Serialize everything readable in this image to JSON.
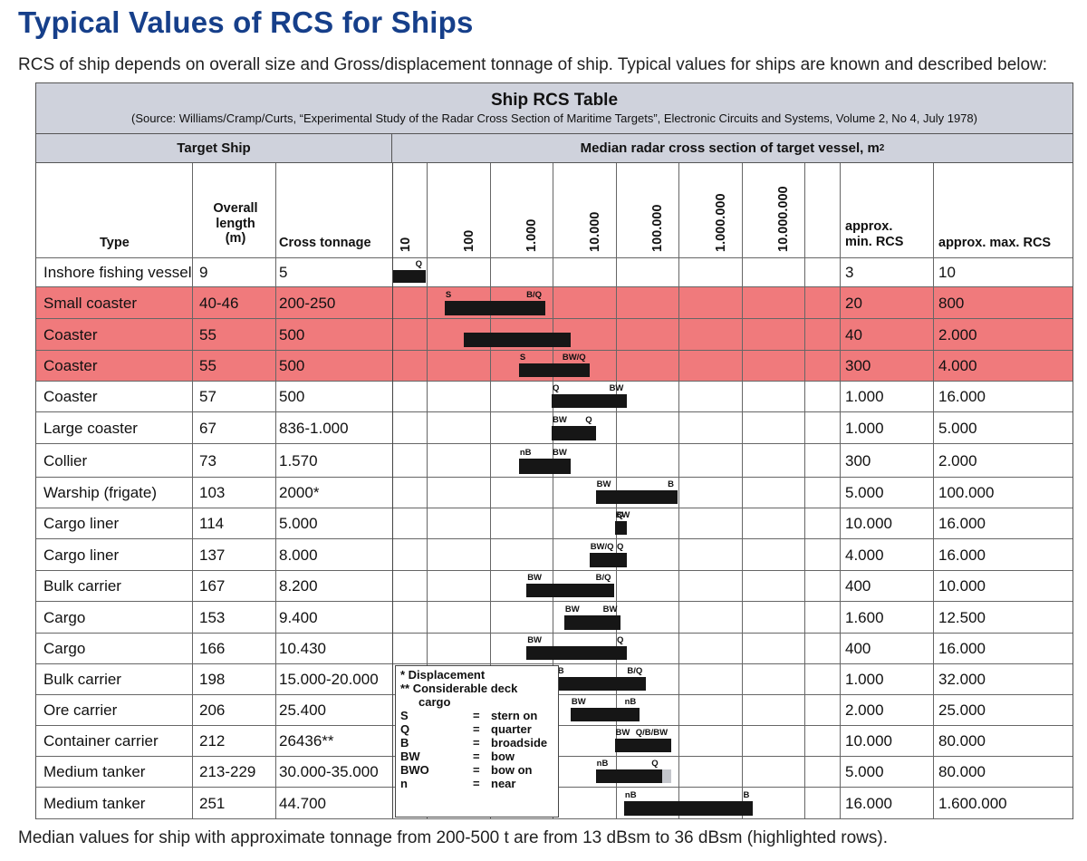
{
  "page": {
    "title": "Typical Values of RCS for Ships",
    "intro": "RCS of ship depends on overall size and Gross/displacement tonnage of ship. Typical values for ships are known and described below:",
    "footer": "Median values for ship with approximate tonnage from 200-500 t are from 13 dBsm to 36 dBsm (highlighted rows)."
  },
  "table": {
    "title": "Ship RCS Table",
    "source": "(Source: Williams/Cramp/Curts, “Experimental Study of the Radar Cross Section of Maritime Targets”, Electronic Circuits and Systems, Volume 2, No 4, July 1978)",
    "group_left": "Target Ship",
    "group_right": "Median radar cross section of target vessel, m",
    "group_right_sup": "2",
    "headers": {
      "type": "Type",
      "length_1": "Overall",
      "length_2": "length",
      "length_3": "(m)",
      "tonnage": "Cross tonnage",
      "min_1": "approx.",
      "min_2": "min.  RCS",
      "max": "approx. max. RCS"
    },
    "scale_labels": [
      "10",
      "100",
      "1.000",
      "10.000",
      "100.000",
      "1.000.000",
      "10.000.000"
    ],
    "highlight_color": "#f07a7c",
    "rows": [
      {
        "type": "Inshore fishing vessel",
        "length": "9",
        "tonnage": "5",
        "min_rcs": "3",
        "max_rcs": "10",
        "highlight": false,
        "bar_log": [
          0.48,
          1.0
        ],
        "labels": [
          {
            "text": "Q",
            "at": "end"
          }
        ]
      },
      {
        "type": "Small coaster",
        "length": "40-46",
        "tonnage": "200-250",
        "min_rcs": "20",
        "max_rcs": "800",
        "highlight": true,
        "bar_log": [
          1.3,
          2.9
        ],
        "labels": [
          {
            "text": "S",
            "at": "start"
          },
          {
            "text": "B/Q",
            "at": "end"
          }
        ]
      },
      {
        "type": "Coaster",
        "length": "55",
        "tonnage": "500",
        "min_rcs": "40",
        "max_rcs": "2.000",
        "highlight": true,
        "bar_log": [
          1.6,
          3.3
        ],
        "labels": []
      },
      {
        "type": "Coaster",
        "length": "55",
        "tonnage": "500",
        "min_rcs": "300",
        "max_rcs": "4.000",
        "highlight": true,
        "bar_log": [
          2.48,
          3.6
        ],
        "labels": [
          {
            "text": "S",
            "at": "start"
          },
          {
            "text": "BW/Q",
            "at": "end"
          }
        ]
      },
      {
        "type": "Coaster",
        "length": "57",
        "tonnage": "500",
        "min_rcs": "1.000",
        "max_rcs": "16.000",
        "highlight": false,
        "bar_log": [
          3.0,
          4.2
        ],
        "labels": [
          {
            "text": "Q",
            "at": "start"
          },
          {
            "text": "BW",
            "at": "end"
          }
        ]
      },
      {
        "type": "Large coaster",
        "length": "67",
        "tonnage": "836-1.000",
        "min_rcs": "1.000",
        "max_rcs": "5.000",
        "highlight": false,
        "bar_log": [
          3.0,
          3.7
        ],
        "labels": [
          {
            "text": "BW",
            "at": "start"
          },
          {
            "text": "Q",
            "at": "end"
          }
        ]
      },
      {
        "type": "Collier",
        "length": "73",
        "tonnage": "1.570",
        "min_rcs": "300",
        "max_rcs": "2.000",
        "highlight": false,
        "bar_log": [
          2.48,
          3.3
        ],
        "labels": [
          {
            "text": "nB",
            "at": "start"
          },
          {
            "text": "BW",
            "at": "end"
          }
        ]
      },
      {
        "type": "Warship (frigate)",
        "length": "103",
        "tonnage": "2000*",
        "min_rcs": "5.000",
        "max_rcs": "100.000",
        "highlight": false,
        "bar_log": [
          3.7,
          5.0
        ],
        "labels": [
          {
            "text": "BW",
            "at": "start"
          },
          {
            "text": "B",
            "at": "end"
          }
        ]
      },
      {
        "type": "Cargo liner",
        "length": "114",
        "tonnage": "5.000",
        "min_rcs": "10.000",
        "max_rcs": "16.000",
        "highlight": false,
        "bar_log": [
          4.0,
          4.2
        ],
        "labels": [
          {
            "text": "BW",
            "at": "start"
          },
          {
            "text": "Q",
            "at": "end"
          }
        ]
      },
      {
        "type": "Cargo liner",
        "length": "137",
        "tonnage": "8.000",
        "min_rcs": "4.000",
        "max_rcs": "16.000",
        "highlight": false,
        "bar_log": [
          3.6,
          4.2
        ],
        "labels": [
          {
            "text": "BW/Q",
            "at": "start"
          },
          {
            "text": "Q",
            "at": "end"
          }
        ]
      },
      {
        "type": "Bulk carrier",
        "length": "167",
        "tonnage": "8.200",
        "min_rcs": "400",
        "max_rcs": "10.000",
        "highlight": false,
        "bar_log": [
          2.6,
          4.0
        ],
        "labels": [
          {
            "text": "BW",
            "at": "start"
          },
          {
            "text": "B/Q",
            "at": "end"
          }
        ]
      },
      {
        "type": "Cargo",
        "length": "153",
        "tonnage": "9.400",
        "min_rcs": "1.600",
        "max_rcs": "12.500",
        "highlight": false,
        "bar_log": [
          3.2,
          4.1
        ],
        "labels": [
          {
            "text": "BW",
            "at": "start"
          },
          {
            "text": "BW",
            "at": "end"
          }
        ]
      },
      {
        "type": "Cargo",
        "length": "166",
        "tonnage": "10.430",
        "min_rcs": "400",
        "max_rcs": "16.000",
        "highlight": false,
        "bar_log": [
          2.6,
          4.2
        ],
        "labels": [
          {
            "text": "BW",
            "at": "start"
          },
          {
            "text": "Q",
            "at": "end"
          }
        ]
      },
      {
        "type": "Bulk carrier",
        "length": "198",
        "tonnage": "15.000-20.000",
        "min_rcs": "1.000",
        "max_rcs": "32.000",
        "highlight": false,
        "bar_log": [
          3.0,
          4.5
        ],
        "labels": [
          {
            "text": "nB",
            "at": "start"
          },
          {
            "text": "B/Q",
            "at": "end"
          }
        ]
      },
      {
        "type": "Ore carrier",
        "length": "206",
        "tonnage": "25.400",
        "min_rcs": "2.000",
        "max_rcs": "25.000",
        "highlight": false,
        "bar_log": [
          3.3,
          4.4
        ],
        "labels": [
          {
            "text": "BW",
            "at": "start"
          },
          {
            "text": "nB",
            "at": "end"
          }
        ]
      },
      {
        "type": "Container carrier",
        "length": "212",
        "tonnage": "26436**",
        "min_rcs": "10.000",
        "max_rcs": "80.000",
        "highlight": false,
        "bar_log": [
          4.0,
          4.9
        ],
        "labels": [
          {
            "text": "BW",
            "at": "start"
          },
          {
            "text": "Q/B/BW",
            "at": "end"
          }
        ]
      },
      {
        "type": "Medium tanker",
        "length": "213-229",
        "tonnage": "30.000-35.000",
        "min_rcs": "5.000",
        "max_rcs": "80.000",
        "highlight": false,
        "bar_log": [
          3.7,
          4.75
        ],
        "gray_log": [
          4.75,
          4.9
        ],
        "labels": [
          {
            "text": "nB",
            "at": "start"
          },
          {
            "text": "Q",
            "at": "end"
          }
        ]
      },
      {
        "type": "Medium tanker",
        "length": "251",
        "tonnage": "44.700",
        "min_rcs": "16.000",
        "max_rcs": "1.600.000",
        "highlight": false,
        "bar_log": [
          4.15,
          6.2
        ],
        "labels": [
          {
            "text": "nB",
            "at": "start"
          },
          {
            "text": "B",
            "at": "end"
          }
        ]
      }
    ],
    "legend": {
      "note_1": "*  Displacement",
      "note_2": "** Considerable deck",
      "note_3": "cargo",
      "items": [
        {
          "code": "S",
          "meaning": "stern on"
        },
        {
          "code": "Q",
          "meaning": "quarter"
        },
        {
          "code": "B",
          "meaning": "broadside"
        },
        {
          "code": "BW",
          "meaning": "bow"
        },
        {
          "code": "BWO",
          "meaning": "bow on"
        },
        {
          "code": "n",
          "meaning": "near"
        }
      ]
    }
  }
}
